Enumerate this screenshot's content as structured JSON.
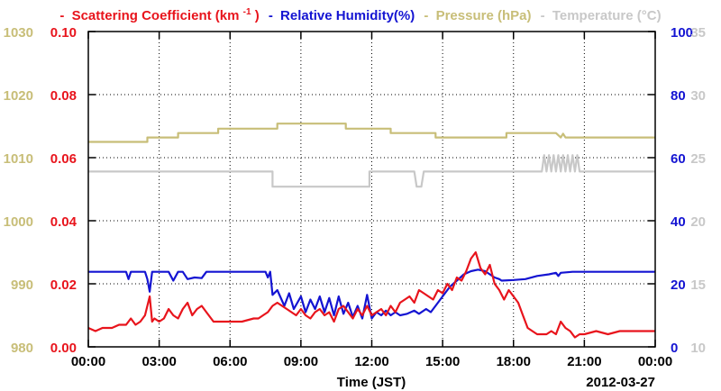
{
  "chart_data": {
    "type": "line",
    "legend": [
      {
        "marker": "-",
        "label": "Scattering Coefficient (km",
        "sup": "-1",
        "label_end": ")",
        "color": "#e8141c"
      },
      {
        "marker": "-",
        "label": "Relative Humidity(%)",
        "color": "#1414d2"
      },
      {
        "marker": "-",
        "label": "Pressure (hPa)",
        "color": "#c8be78"
      },
      {
        "marker": "-",
        "label": "Temperature (°C)",
        "color": "#c8c8c8"
      }
    ],
    "xlabel": "Time (JST)",
    "date": "2012-03-27",
    "x_ticks": [
      "00:00",
      "03:00",
      "06:00",
      "09:00",
      "12:00",
      "15:00",
      "18:00",
      "21:00",
      "00:00"
    ],
    "x_range_hours": [
      0,
      24
    ],
    "axes": {
      "scattering": {
        "side": "left-inner",
        "ylim": [
          0.0,
          0.1
        ],
        "ticks": [
          "0.00",
          "0.02",
          "0.04",
          "0.06",
          "0.08",
          "0.10"
        ],
        "color": "#e8141c"
      },
      "pressure": {
        "side": "left-outer",
        "ylim": [
          980,
          1030
        ],
        "ticks": [
          "980",
          "990",
          "1000",
          "1010",
          "1020",
          "1030"
        ],
        "color": "#c8be78"
      },
      "humidity": {
        "side": "right-inner",
        "ylim": [
          0,
          100
        ],
        "ticks": [
          "0",
          "20",
          "40",
          "60",
          "80",
          "100"
        ],
        "color": "#1414d2"
      },
      "temperature": {
        "side": "right-outer",
        "ylim": [
          10,
          35
        ],
        "ticks": [
          "10",
          "15",
          "20",
          "25",
          "30",
          "35"
        ],
        "color": "#c8c8c8"
      }
    },
    "grid": true,
    "series": [
      {
        "name": "Pressure (hPa)",
        "axis": "pressure",
        "color": "#c8be78",
        "x": [
          0.0,
          2.5,
          2.5,
          3.8,
          3.8,
          5.5,
          5.5,
          8.0,
          8.0,
          10.9,
          10.9,
          12.8,
          12.8,
          14.7,
          14.7,
          17.7,
          17.7,
          19.8,
          19.8,
          20.0,
          20.1,
          20.2,
          20.3,
          24.0
        ],
        "y": [
          1012.5,
          1012.5,
          1013.2,
          1013.2,
          1013.9,
          1013.9,
          1014.6,
          1014.6,
          1015.4,
          1015.4,
          1014.6,
          1014.6,
          1013.9,
          1013.9,
          1013.2,
          1013.2,
          1013.9,
          1013.9,
          1013.9,
          1013.2,
          1013.8,
          1013.2,
          1013.2,
          1013.2
        ]
      },
      {
        "name": "Temperature (°C)",
        "axis": "temperature",
        "color": "#c8c8c8",
        "x": [
          0.0,
          7.8,
          7.8,
          11.9,
          11.9,
          13.8,
          13.9,
          14.1,
          14.2,
          19.2,
          19.3,
          19.4,
          19.5,
          19.6,
          19.7,
          19.8,
          19.9,
          20.0,
          20.1,
          20.2,
          20.3,
          20.4,
          20.5,
          20.6,
          20.7,
          20.8,
          24.0
        ],
        "y": [
          23.9,
          23.9,
          22.7,
          22.7,
          23.9,
          23.9,
          22.7,
          22.7,
          23.9,
          23.9,
          25.2,
          23.9,
          25.2,
          23.9,
          25.2,
          23.9,
          25.2,
          23.9,
          25.2,
          23.9,
          25.2,
          23.9,
          25.2,
          23.9,
          25.2,
          23.9,
          23.9
        ]
      },
      {
        "name": "Relative Humidity(%)",
        "axis": "humidity",
        "color": "#1414d2",
        "x": [
          0.0,
          1.6,
          1.7,
          1.8,
          2.4,
          2.5,
          2.6,
          2.7,
          2.8,
          2.9,
          3.4,
          3.6,
          3.8,
          4.0,
          4.2,
          4.5,
          4.8,
          5.0,
          5.2,
          5.5,
          6.0,
          6.5,
          7.0,
          7.3,
          7.5,
          7.6,
          7.7,
          7.8,
          8.0,
          8.3,
          8.5,
          8.7,
          9.0,
          9.2,
          9.4,
          9.6,
          9.8,
          10.0,
          10.2,
          10.4,
          10.6,
          10.8,
          11.0,
          11.2,
          11.4,
          11.6,
          11.8,
          12.0,
          12.2,
          12.4,
          12.6,
          12.8,
          13.0,
          13.2,
          13.5,
          13.8,
          14.0,
          14.3,
          14.5,
          14.8,
          15.0,
          15.3,
          15.6,
          15.9,
          16.2,
          16.5,
          16.8,
          17.0,
          17.2,
          17.4,
          17.5,
          18.0,
          18.5,
          19.0,
          19.5,
          19.8,
          19.9,
          20.0,
          20.5,
          21.0,
          22.0,
          23.0,
          24.0
        ],
        "y": [
          23.8,
          23.8,
          21.5,
          23.8,
          23.8,
          21.5,
          17.5,
          23.8,
          23.8,
          23.8,
          23.8,
          21.0,
          23.8,
          23.8,
          21.5,
          22.0,
          21.8,
          23.8,
          23.8,
          23.8,
          23.8,
          23.8,
          23.8,
          23.8,
          23.8,
          22.0,
          23.8,
          16.5,
          18.0,
          13.0,
          17.0,
          12.0,
          16.0,
          11.0,
          15.0,
          12.0,
          16.0,
          11.0,
          15.5,
          10.0,
          16.0,
          10.5,
          14.0,
          9.5,
          13.0,
          9.0,
          16.5,
          9.0,
          11.0,
          10.0,
          11.5,
          10.0,
          11.0,
          10.0,
          10.5,
          11.5,
          10.5,
          12.0,
          11.0,
          14.0,
          16.0,
          19.0,
          21.0,
          23.0,
          24.0,
          24.5,
          24.0,
          23.0,
          22.0,
          21.5,
          21.0,
          21.2,
          21.5,
          22.5,
          23.0,
          23.5,
          22.5,
          23.5,
          23.8,
          23.8,
          23.8,
          23.8,
          23.8
        ]
      },
      {
        "name": "Scattering Coefficient (km-1)",
        "axis": "scattering",
        "color": "#e8141c",
        "x": [
          0.0,
          0.3,
          0.6,
          1.0,
          1.3,
          1.6,
          1.8,
          2.0,
          2.2,
          2.4,
          2.6,
          2.7,
          2.8,
          3.0,
          3.2,
          3.4,
          3.6,
          3.8,
          4.0,
          4.2,
          4.4,
          4.6,
          4.8,
          5.0,
          5.3,
          5.6,
          6.0,
          6.5,
          7.0,
          7.2,
          7.4,
          7.6,
          7.8,
          8.0,
          8.2,
          8.4,
          8.6,
          8.8,
          9.0,
          9.2,
          9.4,
          9.6,
          9.8,
          10.0,
          10.2,
          10.4,
          10.6,
          10.8,
          11.0,
          11.2,
          11.4,
          11.6,
          11.8,
          12.0,
          12.2,
          12.4,
          12.6,
          12.8,
          13.0,
          13.2,
          13.4,
          13.6,
          13.8,
          14.0,
          14.2,
          14.4,
          14.6,
          14.8,
          15.0,
          15.2,
          15.4,
          15.6,
          15.8,
          16.0,
          16.2,
          16.4,
          16.6,
          16.8,
          17.0,
          17.2,
          17.4,
          17.6,
          17.8,
          18.0,
          18.2,
          18.4,
          18.6,
          18.8,
          19.0,
          19.2,
          19.4,
          19.6,
          19.8,
          20.0,
          20.2,
          20.4,
          20.6,
          20.8,
          21.0,
          21.5,
          22.0,
          22.5,
          23.0,
          23.5,
          24.0
        ],
        "y": [
          0.006,
          0.005,
          0.006,
          0.006,
          0.007,
          0.007,
          0.009,
          0.007,
          0.008,
          0.01,
          0.016,
          0.008,
          0.009,
          0.008,
          0.009,
          0.012,
          0.01,
          0.009,
          0.012,
          0.014,
          0.01,
          0.012,
          0.013,
          0.011,
          0.008,
          0.008,
          0.008,
          0.008,
          0.009,
          0.009,
          0.01,
          0.011,
          0.013,
          0.014,
          0.013,
          0.012,
          0.011,
          0.01,
          0.012,
          0.01,
          0.009,
          0.011,
          0.012,
          0.01,
          0.011,
          0.008,
          0.012,
          0.013,
          0.011,
          0.009,
          0.012,
          0.01,
          0.013,
          0.01,
          0.011,
          0.012,
          0.01,
          0.013,
          0.011,
          0.014,
          0.015,
          0.016,
          0.014,
          0.018,
          0.017,
          0.016,
          0.015,
          0.018,
          0.017,
          0.02,
          0.018,
          0.022,
          0.021,
          0.024,
          0.028,
          0.03,
          0.025,
          0.023,
          0.026,
          0.02,
          0.018,
          0.015,
          0.018,
          0.016,
          0.014,
          0.01,
          0.006,
          0.005,
          0.004,
          0.004,
          0.004,
          0.005,
          0.004,
          0.008,
          0.006,
          0.005,
          0.003,
          0.004,
          0.004,
          0.005,
          0.004,
          0.005,
          0.005,
          0.005,
          0.005
        ]
      }
    ]
  }
}
